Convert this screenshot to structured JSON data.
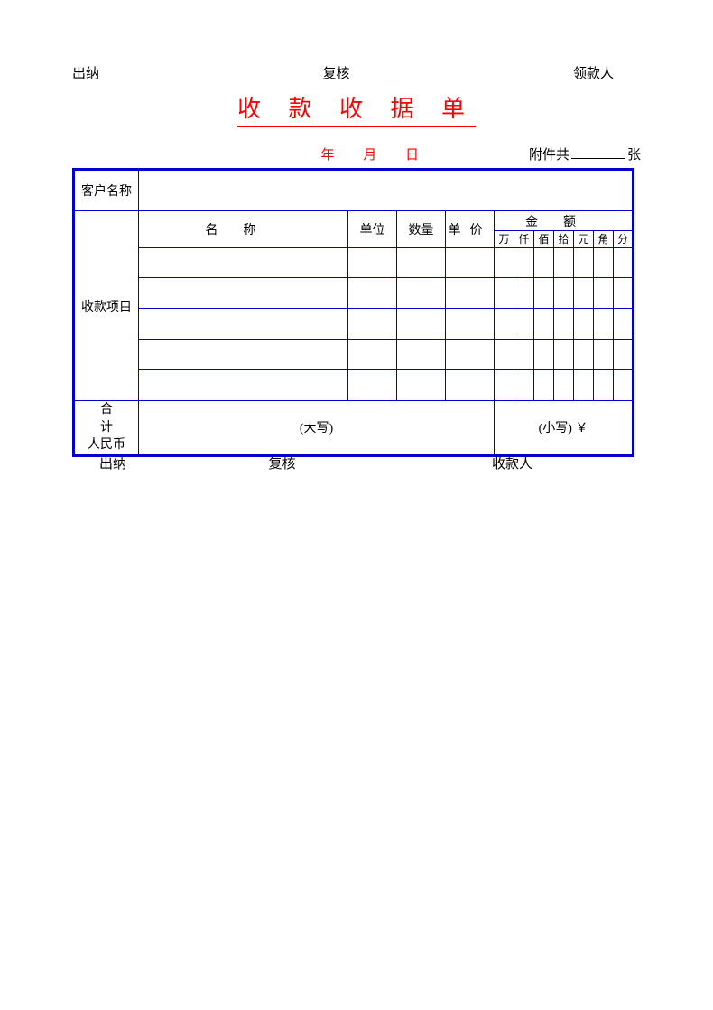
{
  "top": {
    "cashier": "出纳",
    "reviewer": "复核",
    "payee": "领款人"
  },
  "title": "收 款 收 据 单",
  "date": {
    "year": "年",
    "month": "月",
    "day": "日"
  },
  "attachment": {
    "prefix": "附件共",
    "suffix": "张"
  },
  "table": {
    "customer_label": "客户名称",
    "project_label": "收款项目",
    "header": {
      "name": "名称",
      "unit": "单位",
      "qty": "数量",
      "price": "单价",
      "amount": "金额",
      "digits": [
        "万",
        "仟",
        "佰",
        "拾",
        "元",
        "角",
        "分"
      ]
    },
    "total": {
      "label_line1": "合计",
      "label_line2": "人民币",
      "upper": "(大写)",
      "lower": "(小写)   ￥"
    }
  },
  "bottom": {
    "cashier": "出纳",
    "reviewer": "复核",
    "payee": "收款人"
  },
  "style": {
    "border_color": "#0000cc",
    "accent_color": "#ff0000",
    "text_color": "#000000",
    "background": "#ffffff"
  }
}
